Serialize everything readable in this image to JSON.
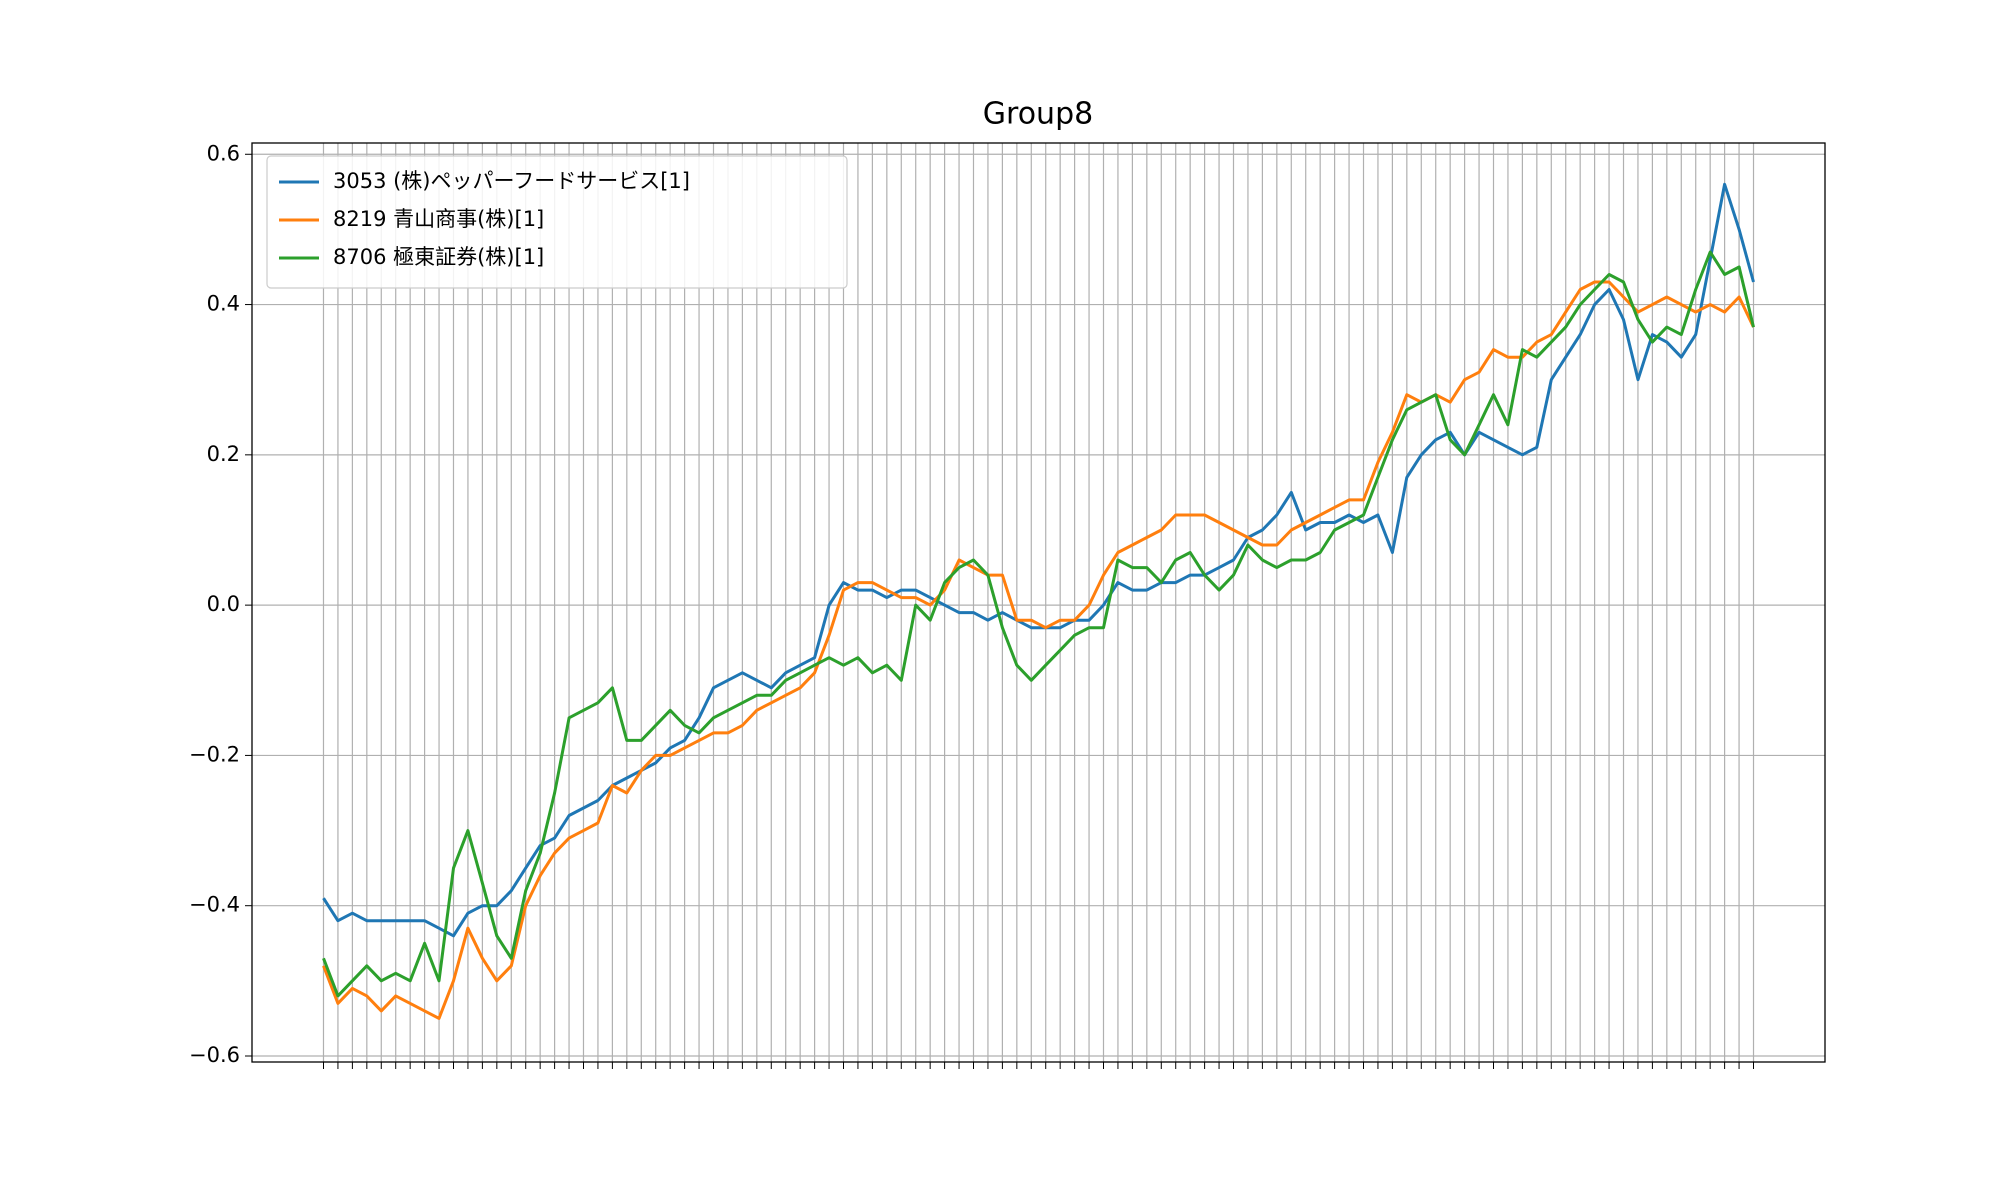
{
  "chart_data": {
    "type": "line",
    "title": "Group8",
    "categories": [
      null,
      null,
      null,
      null,
      null,
      null,
      null,
      null,
      null,
      null,
      null,
      null,
      null,
      null,
      null,
      null,
      null,
      null,
      null,
      null,
      null,
      null,
      null,
      null,
      null,
      null,
      null,
      null,
      null,
      null,
      null,
      null,
      null,
      null,
      null,
      null,
      null,
      null,
      null,
      null,
      null,
      null,
      null,
      null,
      null,
      null,
      null,
      null,
      null,
      null,
      null,
      null,
      null,
      null,
      null,
      null,
      null,
      null,
      null,
      null,
      null,
      null,
      null,
      null,
      null,
      null,
      null,
      null,
      null,
      null,
      null,
      null,
      null,
      null,
      null,
      null,
      null,
      null,
      null,
      null,
      null,
      null,
      null,
      null,
      null,
      null,
      null,
      null,
      null,
      null,
      null,
      null,
      null,
      null,
      null,
      null,
      null,
      null,
      null,
      null
    ],
    "series": [
      {
        "name": "3053 (株)ペッパーフードサービス[1]",
        "color": "#1f77b4",
        "values": [
          -0.39,
          -0.42,
          -0.41,
          -0.42,
          -0.42,
          -0.42,
          -0.42,
          -0.42,
          -0.43,
          -0.44,
          -0.41,
          -0.4,
          -0.4,
          -0.38,
          -0.35,
          -0.32,
          -0.31,
          -0.28,
          -0.27,
          -0.26,
          -0.24,
          -0.23,
          -0.22,
          -0.21,
          -0.19,
          -0.18,
          -0.15,
          -0.11,
          -0.1,
          -0.09,
          -0.1,
          -0.11,
          -0.09,
          -0.08,
          -0.07,
          0.0,
          0.03,
          0.02,
          0.02,
          0.01,
          0.02,
          0.02,
          0.01,
          0.0,
          -0.01,
          -0.01,
          -0.02,
          -0.01,
          -0.02,
          -0.03,
          -0.03,
          -0.03,
          -0.02,
          -0.02,
          0.0,
          0.03,
          0.02,
          0.02,
          0.03,
          0.03,
          0.04,
          0.04,
          0.05,
          0.06,
          0.09,
          0.1,
          0.12,
          0.15,
          0.1,
          0.11,
          0.11,
          0.12,
          0.11,
          0.12,
          0.07,
          0.17,
          0.2,
          0.22,
          0.23,
          0.2,
          0.23,
          0.22,
          0.21,
          0.2,
          0.21,
          0.3,
          0.33,
          0.36,
          0.4,
          0.42,
          0.38,
          0.3,
          0.36,
          0.35,
          0.33,
          0.36,
          0.46,
          0.56,
          0.5,
          0.43
        ]
      },
      {
        "name": "8219 青山商事(株)[1]",
        "color": "#ff7f0e",
        "values": [
          -0.48,
          -0.53,
          -0.51,
          -0.52,
          -0.54,
          -0.52,
          -0.53,
          -0.54,
          -0.55,
          -0.5,
          -0.43,
          -0.47,
          -0.5,
          -0.48,
          -0.4,
          -0.36,
          -0.33,
          -0.31,
          -0.3,
          -0.29,
          -0.24,
          -0.25,
          -0.22,
          -0.2,
          -0.2,
          -0.19,
          -0.18,
          -0.17,
          -0.17,
          -0.16,
          -0.14,
          -0.13,
          -0.12,
          -0.11,
          -0.09,
          -0.04,
          0.02,
          0.03,
          0.03,
          0.02,
          0.01,
          0.01,
          0.0,
          0.02,
          0.06,
          0.05,
          0.04,
          0.04,
          -0.02,
          -0.02,
          -0.03,
          -0.02,
          -0.02,
          0.0,
          0.04,
          0.07,
          0.08,
          0.09,
          0.1,
          0.12,
          0.12,
          0.12,
          0.11,
          0.1,
          0.09,
          0.08,
          0.08,
          0.1,
          0.11,
          0.12,
          0.13,
          0.14,
          0.14,
          0.19,
          0.23,
          0.28,
          0.27,
          0.28,
          0.27,
          0.3,
          0.31,
          0.34,
          0.33,
          0.33,
          0.35,
          0.36,
          0.39,
          0.42,
          0.43,
          0.43,
          0.41,
          0.39,
          0.4,
          0.41,
          0.4,
          0.39,
          0.4,
          0.39,
          0.41,
          0.37
        ]
      },
      {
        "name": "8706 極東証券(株)[1]",
        "color": "#2ca02c",
        "values": [
          -0.47,
          -0.52,
          -0.5,
          -0.48,
          -0.5,
          -0.49,
          -0.5,
          -0.45,
          -0.5,
          -0.35,
          -0.3,
          -0.37,
          -0.44,
          -0.47,
          -0.38,
          -0.33,
          -0.25,
          -0.15,
          -0.14,
          -0.13,
          -0.11,
          -0.18,
          -0.18,
          -0.16,
          -0.14,
          -0.16,
          -0.17,
          -0.15,
          -0.14,
          -0.13,
          -0.12,
          -0.12,
          -0.1,
          -0.09,
          -0.08,
          -0.07,
          -0.08,
          -0.07,
          -0.09,
          -0.08,
          -0.1,
          0.0,
          -0.02,
          0.03,
          0.05,
          0.06,
          0.04,
          -0.03,
          -0.08,
          -0.1,
          -0.08,
          -0.06,
          -0.04,
          -0.03,
          -0.03,
          0.06,
          0.05,
          0.05,
          0.03,
          0.06,
          0.07,
          0.04,
          0.02,
          0.04,
          0.08,
          0.06,
          0.05,
          0.06,
          0.06,
          0.07,
          0.1,
          0.11,
          0.12,
          0.17,
          0.22,
          0.26,
          0.27,
          0.28,
          0.22,
          0.2,
          0.24,
          0.28,
          0.24,
          0.34,
          0.33,
          0.35,
          0.37,
          0.4,
          0.42,
          0.44,
          0.43,
          0.38,
          0.35,
          0.37,
          0.36,
          0.42,
          0.47,
          0.44,
          0.45,
          0.37
        ]
      }
    ],
    "ylim": [
      -0.608,
      0.615
    ],
    "yticks": [
      {
        "value": -0.6,
        "label": "−0.6"
      },
      {
        "value": -0.4,
        "label": "−0.4"
      },
      {
        "value": -0.2,
        "label": "−0.2"
      },
      {
        "value": 0,
        "label": "0.0"
      },
      0.2,
      0.4,
      0.6
    ],
    "grid": true,
    "legend": "upper-left"
  }
}
